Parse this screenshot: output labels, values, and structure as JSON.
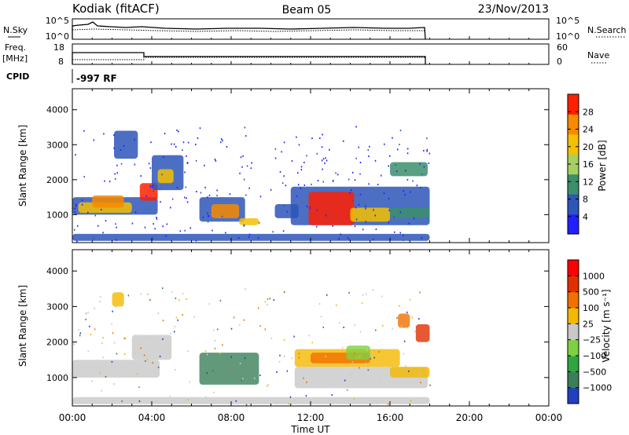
{
  "header": {
    "station": "Kodiak (fitACF)",
    "beam": "Beam 05",
    "date": "23/Nov/2013"
  },
  "panels": {
    "nsky_label": "N.Sky",
    "nsky_ticks": [
      "10^5",
      "10^0"
    ],
    "nsearch_label": "N.Search",
    "nsearch_ticks": [
      "10^5",
      "10^0"
    ],
    "freq_label": "Freq.",
    "freq_unit": "[MHz]",
    "freq_ticks": [
      "18",
      "8"
    ],
    "nave_label": "Nave",
    "nave_ticks": [
      "60",
      "0"
    ],
    "cpid_label": "CPID",
    "cpid_value": "-997 RF"
  },
  "chart_data": [
    {
      "type": "heatmap",
      "title": "",
      "xlabel": "Time UT",
      "ylabel": "Slant Range [km]",
      "x_ticks": [
        "00:00",
        "04:00",
        "08:00",
        "12:00",
        "16:00",
        "20:00",
        "00:00"
      ],
      "x_range_hours": [
        0,
        24
      ],
      "y_ticks": [
        1000,
        2000,
        3000,
        4000
      ],
      "ylim": [
        200,
        4600
      ],
      "colorbar_label": "Power [dB]",
      "colorbar_ticks": [
        "28",
        "24",
        "20",
        "16",
        "12",
        "8",
        "4"
      ],
      "colorbar_colors": [
        "#2020ff",
        "#2d56b8",
        "#3b8f6b",
        "#a8d060",
        "#f5c000",
        "#f78a00",
        "#ff2000"
      ],
      "data_extent_hours": [
        0,
        18
      ]
    },
    {
      "type": "heatmap",
      "title": "",
      "xlabel": "Time UT",
      "ylabel": "Slant Range [km]",
      "x_ticks": [
        "00:00",
        "04:00",
        "08:00",
        "12:00",
        "16:00",
        "20:00",
        "00:00"
      ],
      "x_range_hours": [
        0,
        24
      ],
      "y_ticks": [
        1000,
        2000,
        3000,
        4000
      ],
      "ylim": [
        200,
        4600
      ],
      "colorbar_label": "Velocity [m s⁻¹]",
      "colorbar_ticks": [
        "1000",
        "500",
        "100",
        "25",
        "−25",
        "−100",
        "−500",
        "−1000"
      ],
      "colorbar_colors": [
        "#2040c0",
        "#3b7f5a",
        "#2fa640",
        "#7fd040",
        "#c8c8c8",
        "#f5b800",
        "#f07000",
        "#e03000",
        "#ff0000"
      ],
      "data_extent_hours": [
        0,
        18
      ]
    }
  ]
}
